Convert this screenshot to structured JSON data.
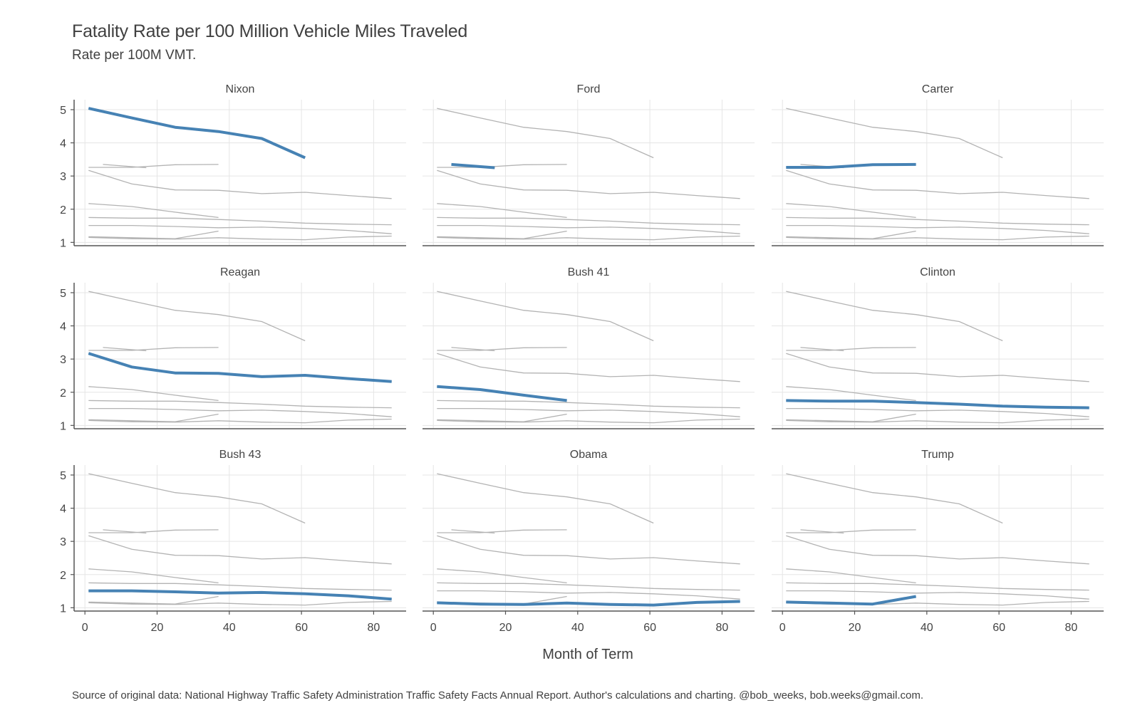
{
  "chart_data": {
    "type": "line",
    "title": "Fatality Rate per 100 Million Vehicle Miles Traveled",
    "subtitle": "Rate per 100M VMT.",
    "xlabel": "Month of Term",
    "ylabel": "",
    "caption": "Source of original data: National Highway Traffic Safety Administration Traffic Safety Facts Annual Report. Author's calculations and charting. @bob_weeks, bob.weeks@gmail.com.",
    "xlim": [
      -3,
      89
    ],
    "ylim": [
      0.9,
      5.3
    ],
    "xticks": [
      0,
      20,
      40,
      60,
      80
    ],
    "yticks": [
      1,
      2,
      3,
      4,
      5
    ],
    "grid": true,
    "facets": [
      "Nixon",
      "Ford",
      "Carter",
      "Reagan",
      "Bush 41",
      "Clinton",
      "Bush 43",
      "Obama",
      "Trump"
    ],
    "colors": {
      "highlight": "#4682b4",
      "background": "#b3b3b3",
      "grid": "#e5e5e5",
      "axis": "#555555"
    },
    "series": [
      {
        "name": "Nixon",
        "x": [
          1,
          13,
          25,
          37,
          49,
          61
        ],
        "y": [
          5.04,
          4.75,
          4.47,
          4.34,
          4.13,
          3.55
        ]
      },
      {
        "name": "Ford",
        "x": [
          5,
          17
        ],
        "y": [
          3.35,
          3.25
        ]
      },
      {
        "name": "Carter",
        "x": [
          1,
          13,
          25,
          37
        ],
        "y": [
          3.26,
          3.26,
          3.34,
          3.35
        ]
      },
      {
        "name": "Reagan",
        "x": [
          1,
          13,
          25,
          37,
          49,
          61,
          73,
          85
        ],
        "y": [
          3.17,
          2.76,
          2.58,
          2.57,
          2.47,
          2.51,
          2.41,
          2.32
        ]
      },
      {
        "name": "Bush 41",
        "x": [
          1,
          13,
          25,
          37
        ],
        "y": [
          2.17,
          2.08,
          1.91,
          1.75
        ]
      },
      {
        "name": "Clinton",
        "x": [
          1,
          13,
          25,
          37,
          49,
          61,
          73,
          85
        ],
        "y": [
          1.75,
          1.73,
          1.73,
          1.69,
          1.64,
          1.58,
          1.55,
          1.53
        ]
      },
      {
        "name": "Bush 43",
        "x": [
          1,
          13,
          25,
          37,
          49,
          61,
          73,
          85
        ],
        "y": [
          1.51,
          1.51,
          1.48,
          1.44,
          1.46,
          1.42,
          1.36,
          1.26
        ]
      },
      {
        "name": "Obama",
        "x": [
          1,
          13,
          25,
          37,
          49,
          61,
          73,
          85
        ],
        "y": [
          1.15,
          1.11,
          1.1,
          1.14,
          1.1,
          1.08,
          1.16,
          1.19
        ]
      },
      {
        "name": "Trump",
        "x": [
          1,
          13,
          25,
          37
        ],
        "y": [
          1.17,
          1.14,
          1.11,
          1.34
        ]
      }
    ]
  }
}
